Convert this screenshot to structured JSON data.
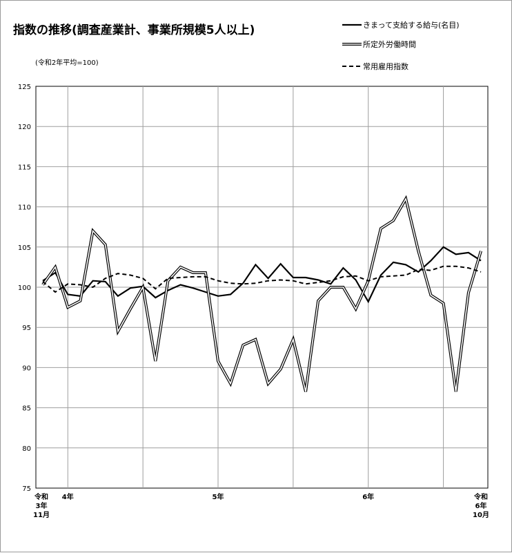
{
  "chart_data": {
    "type": "line",
    "title": "指数の推移(調査産業計、事業所規模5人以上)",
    "subtitle": "(令和2年平均=100)",
    "ylim": [
      75,
      125
    ],
    "yticks": [
      75,
      80,
      85,
      90,
      95,
      100,
      105,
      110,
      115,
      120,
      125
    ],
    "grid": true,
    "legend_position": "top-right",
    "x": [
      "2021-11",
      "2021-12",
      "2022-01",
      "2022-02",
      "2022-03",
      "2022-04",
      "2022-05",
      "2022-06",
      "2022-07",
      "2022-08",
      "2022-09",
      "2022-10",
      "2022-11",
      "2022-12",
      "2023-01",
      "2023-02",
      "2023-03",
      "2023-04",
      "2023-05",
      "2023-06",
      "2023-07",
      "2023-08",
      "2023-09",
      "2023-10",
      "2023-11",
      "2023-12",
      "2024-01",
      "2024-02",
      "2024-03",
      "2024-04",
      "2024-05",
      "2024-06",
      "2024-07",
      "2024-08",
      "2024-09",
      "2024-10"
    ],
    "xtick_labels": [
      {
        "x": "2021-11",
        "lines": [
          "令和",
          "3年",
          "11月"
        ]
      },
      {
        "x": "2022-01",
        "lines": [
          "4年"
        ]
      },
      {
        "x": "2023-01",
        "lines": [
          "5年"
        ]
      },
      {
        "x": "2024-01",
        "lines": [
          "6年"
        ]
      },
      {
        "x": "2024-10",
        "lines": [
          "令和",
          "6年",
          "10月"
        ]
      }
    ],
    "series": [
      {
        "name": "きまって支給する給与(名目)",
        "style": "solid",
        "color": "#000000",
        "values": [
          100.8,
          101.8,
          99.1,
          98.9,
          100.8,
          100.7,
          98.9,
          99.9,
          100.1,
          98.7,
          99.6,
          100.3,
          99.9,
          99.4,
          98.9,
          99.1,
          100.5,
          102.8,
          101.1,
          102.9,
          101.2,
          101.2,
          100.9,
          100.4,
          102.4,
          100.9,
          98.2,
          101.5,
          103.1,
          102.8,
          101.9,
          103.3,
          105.0,
          104.1,
          104.3,
          103.3
        ]
      },
      {
        "name": "所定外労働時間",
        "style": "double",
        "color": "#000000",
        "values": [
          100.3,
          102.5,
          97.5,
          98.3,
          107.0,
          105.3,
          94.5,
          97.3,
          100.0,
          90.8,
          100.8,
          102.5,
          101.8,
          101.8,
          90.8,
          88.0,
          92.8,
          93.5,
          88.0,
          89.8,
          93.5,
          87.0,
          98.3,
          100.0,
          100.0,
          97.3,
          100.8,
          107.3,
          108.3,
          111.0,
          104.5,
          99.0,
          98.0,
          87.0,
          99.3,
          104.5
        ]
      },
      {
        "name": "常用雇用指数",
        "style": "dashed",
        "color": "#000000",
        "values": [
          100.7,
          99.4,
          100.4,
          100.3,
          100.0,
          101.1,
          101.7,
          101.5,
          101.1,
          99.8,
          101.1,
          101.2,
          101.3,
          101.3,
          100.8,
          100.5,
          100.4,
          100.5,
          100.8,
          100.9,
          100.8,
          100.4,
          100.6,
          100.8,
          101.3,
          101.4,
          100.8,
          101.3,
          101.4,
          101.5,
          102.2,
          102.1,
          102.6,
          102.6,
          102.4,
          101.9
        ]
      }
    ]
  }
}
